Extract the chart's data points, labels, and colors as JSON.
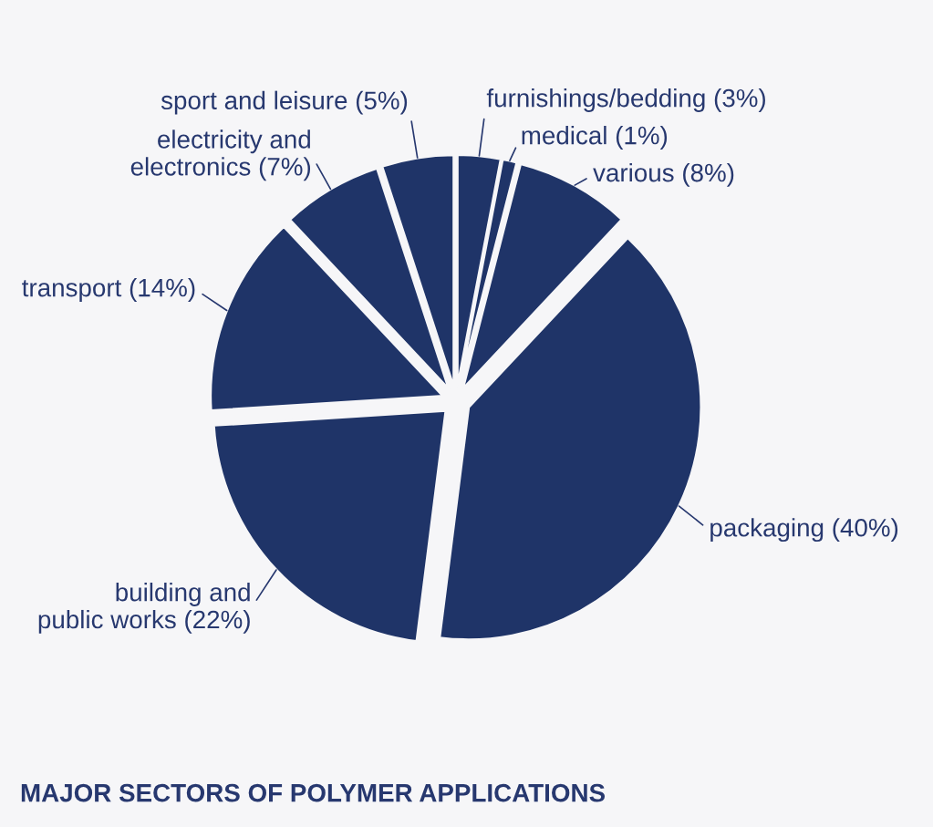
{
  "chart_data": {
    "type": "pie",
    "title": "MAJOR SECTORS OF POLYMER APPLICATIONS",
    "categories": [
      "furnishings/bedding",
      "medical",
      "various",
      "packaging",
      "building and\npublic works",
      "transport",
      "electricity and\nelectronics",
      "sport and leisure"
    ],
    "values": [
      3,
      1,
      8,
      40,
      22,
      14,
      7,
      5
    ],
    "colors": [
      "#1f3468",
      "#1f3468",
      "#1f3468",
      "#1f3468",
      "#1f3468",
      "#1f3468",
      "#1f3468",
      "#1f3468"
    ],
    "value_labels": [
      "(3%)",
      "(1%)",
      "(8%)",
      "(40%)",
      "(22%)",
      "(14%)",
      "(7%)",
      "(5%)"
    ]
  }
}
